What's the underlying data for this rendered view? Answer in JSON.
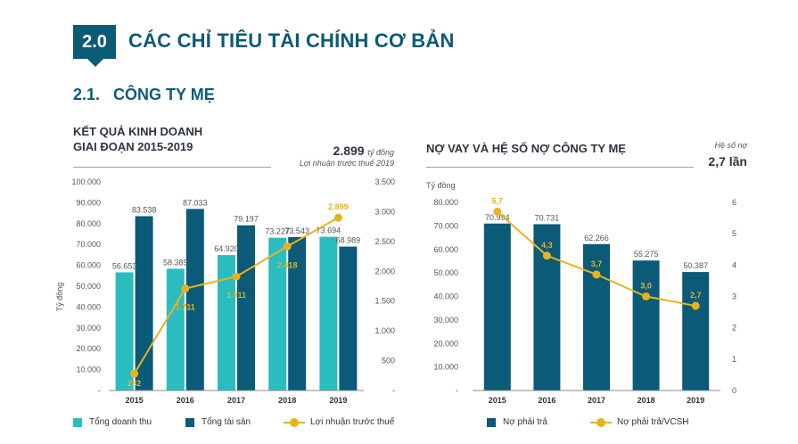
{
  "header": {
    "section_number": "2.0",
    "section_title": "CÁC CHỈ TIÊU TÀI CHÍNH CƠ BẢN",
    "subsection_title": "2.1.   CÔNG TY MẸ"
  },
  "left_panel": {
    "title_line1": "KẾT QUẢ KINH DOANH",
    "title_line2": "GIAI ĐOẠN 2015-2019",
    "highlight_value": "2.899",
    "highlight_unit": "tỷ đồng",
    "highlight_caption": "Lợi nhuận trước thuế 2019"
  },
  "right_panel": {
    "title": "NỢ VAY VÀ HỆ SỐ NỢ CÔNG TY MẸ",
    "highlight_caption": "Hệ số nợ",
    "highlight_value": "2,7 lần"
  },
  "colors": {
    "revenue": "#2bbcc0",
    "assets": "#0b5a78",
    "profit": "#e7b221",
    "debt": "#0b5a78",
    "ratio": "#e7b221"
  },
  "chart_data": [
    {
      "type": "bar",
      "title": "KẾT QUẢ KINH DOANH GIAI ĐOẠN 2015-2019",
      "ylabel": "Tỷ đồng",
      "categories": [
        "2015",
        "2016",
        "2017",
        "2018",
        "2019"
      ],
      "ylim": [
        0,
        100000
      ],
      "y_ticks": [
        "-",
        "10.000",
        "20.000",
        "30.000",
        "40.000",
        "50.000",
        "60.000",
        "70.000",
        "80.000",
        "90.000",
        "100.000"
      ],
      "y2lim": [
        0,
        3500
      ],
      "y2_ticks": [
        "-",
        "500",
        "1.000",
        "1.500",
        "2.000",
        "2.500",
        "3.000",
        "3.500"
      ],
      "series": [
        {
          "name": "Tổng doanh thu",
          "kind": "bar",
          "axis": "left",
          "values": [
            56653,
            58389,
            64920,
            73227,
            73694
          ],
          "labels": [
            "56.653",
            "58.389",
            "64.920",
            "73.227",
            "73.694"
          ]
        },
        {
          "name": "Tổng tài sản",
          "kind": "bar",
          "axis": "left",
          "values": [
            83538,
            87033,
            79197,
            73543,
            68989
          ],
          "labels": [
            "83.538",
            "87.033",
            "79.197",
            "73.543",
            "68.989"
          ]
        },
        {
          "name": "Lợi nhuận trước thuế",
          "kind": "line",
          "axis": "right",
          "values": [
            282,
            1711,
            1911,
            2418,
            2899
          ],
          "labels": [
            "282",
            "1.711",
            "1.911",
            "2.418",
            "2.899"
          ]
        }
      ],
      "legend": [
        "Tổng doanh thu",
        "Tổng tài sản",
        "Lợi nhuận trước thuế"
      ]
    },
    {
      "type": "bar",
      "title": "NỢ VAY VÀ HỆ SỐ NỢ CÔNG TY MẸ",
      "ylabel": "Tỷ đồng",
      "categories": [
        "2015",
        "2016",
        "2017",
        "2018",
        "2019"
      ],
      "ylim": [
        0,
        80000
      ],
      "y_ticks": [
        "-",
        "10.000",
        "20.000",
        "30.000",
        "40.000",
        "50.000",
        "60.000",
        "70.000",
        "80.000"
      ],
      "y2lim": [
        0,
        6
      ],
      "y2_ticks": [
        "0",
        "1",
        "2",
        "3",
        "4",
        "5",
        "6"
      ],
      "series": [
        {
          "name": "Nợ phải trả",
          "kind": "bar",
          "axis": "left",
          "values": [
            70994,
            70731,
            62266,
            55275,
            50387
          ],
          "labels": [
            "70.994",
            "70.731",
            "62.266",
            "55.275",
            "50.387"
          ]
        },
        {
          "name": "Nợ phải trả/VCSH",
          "kind": "line",
          "axis": "right",
          "values": [
            5.7,
            4.3,
            3.7,
            3.0,
            2.7
          ],
          "labels": [
            "5,7",
            "4,3",
            "3,7",
            "3,0",
            "2,7"
          ]
        }
      ],
      "legend": [
        "Nợ phải trả",
        "Nợ phải trả/VCSH"
      ]
    }
  ]
}
